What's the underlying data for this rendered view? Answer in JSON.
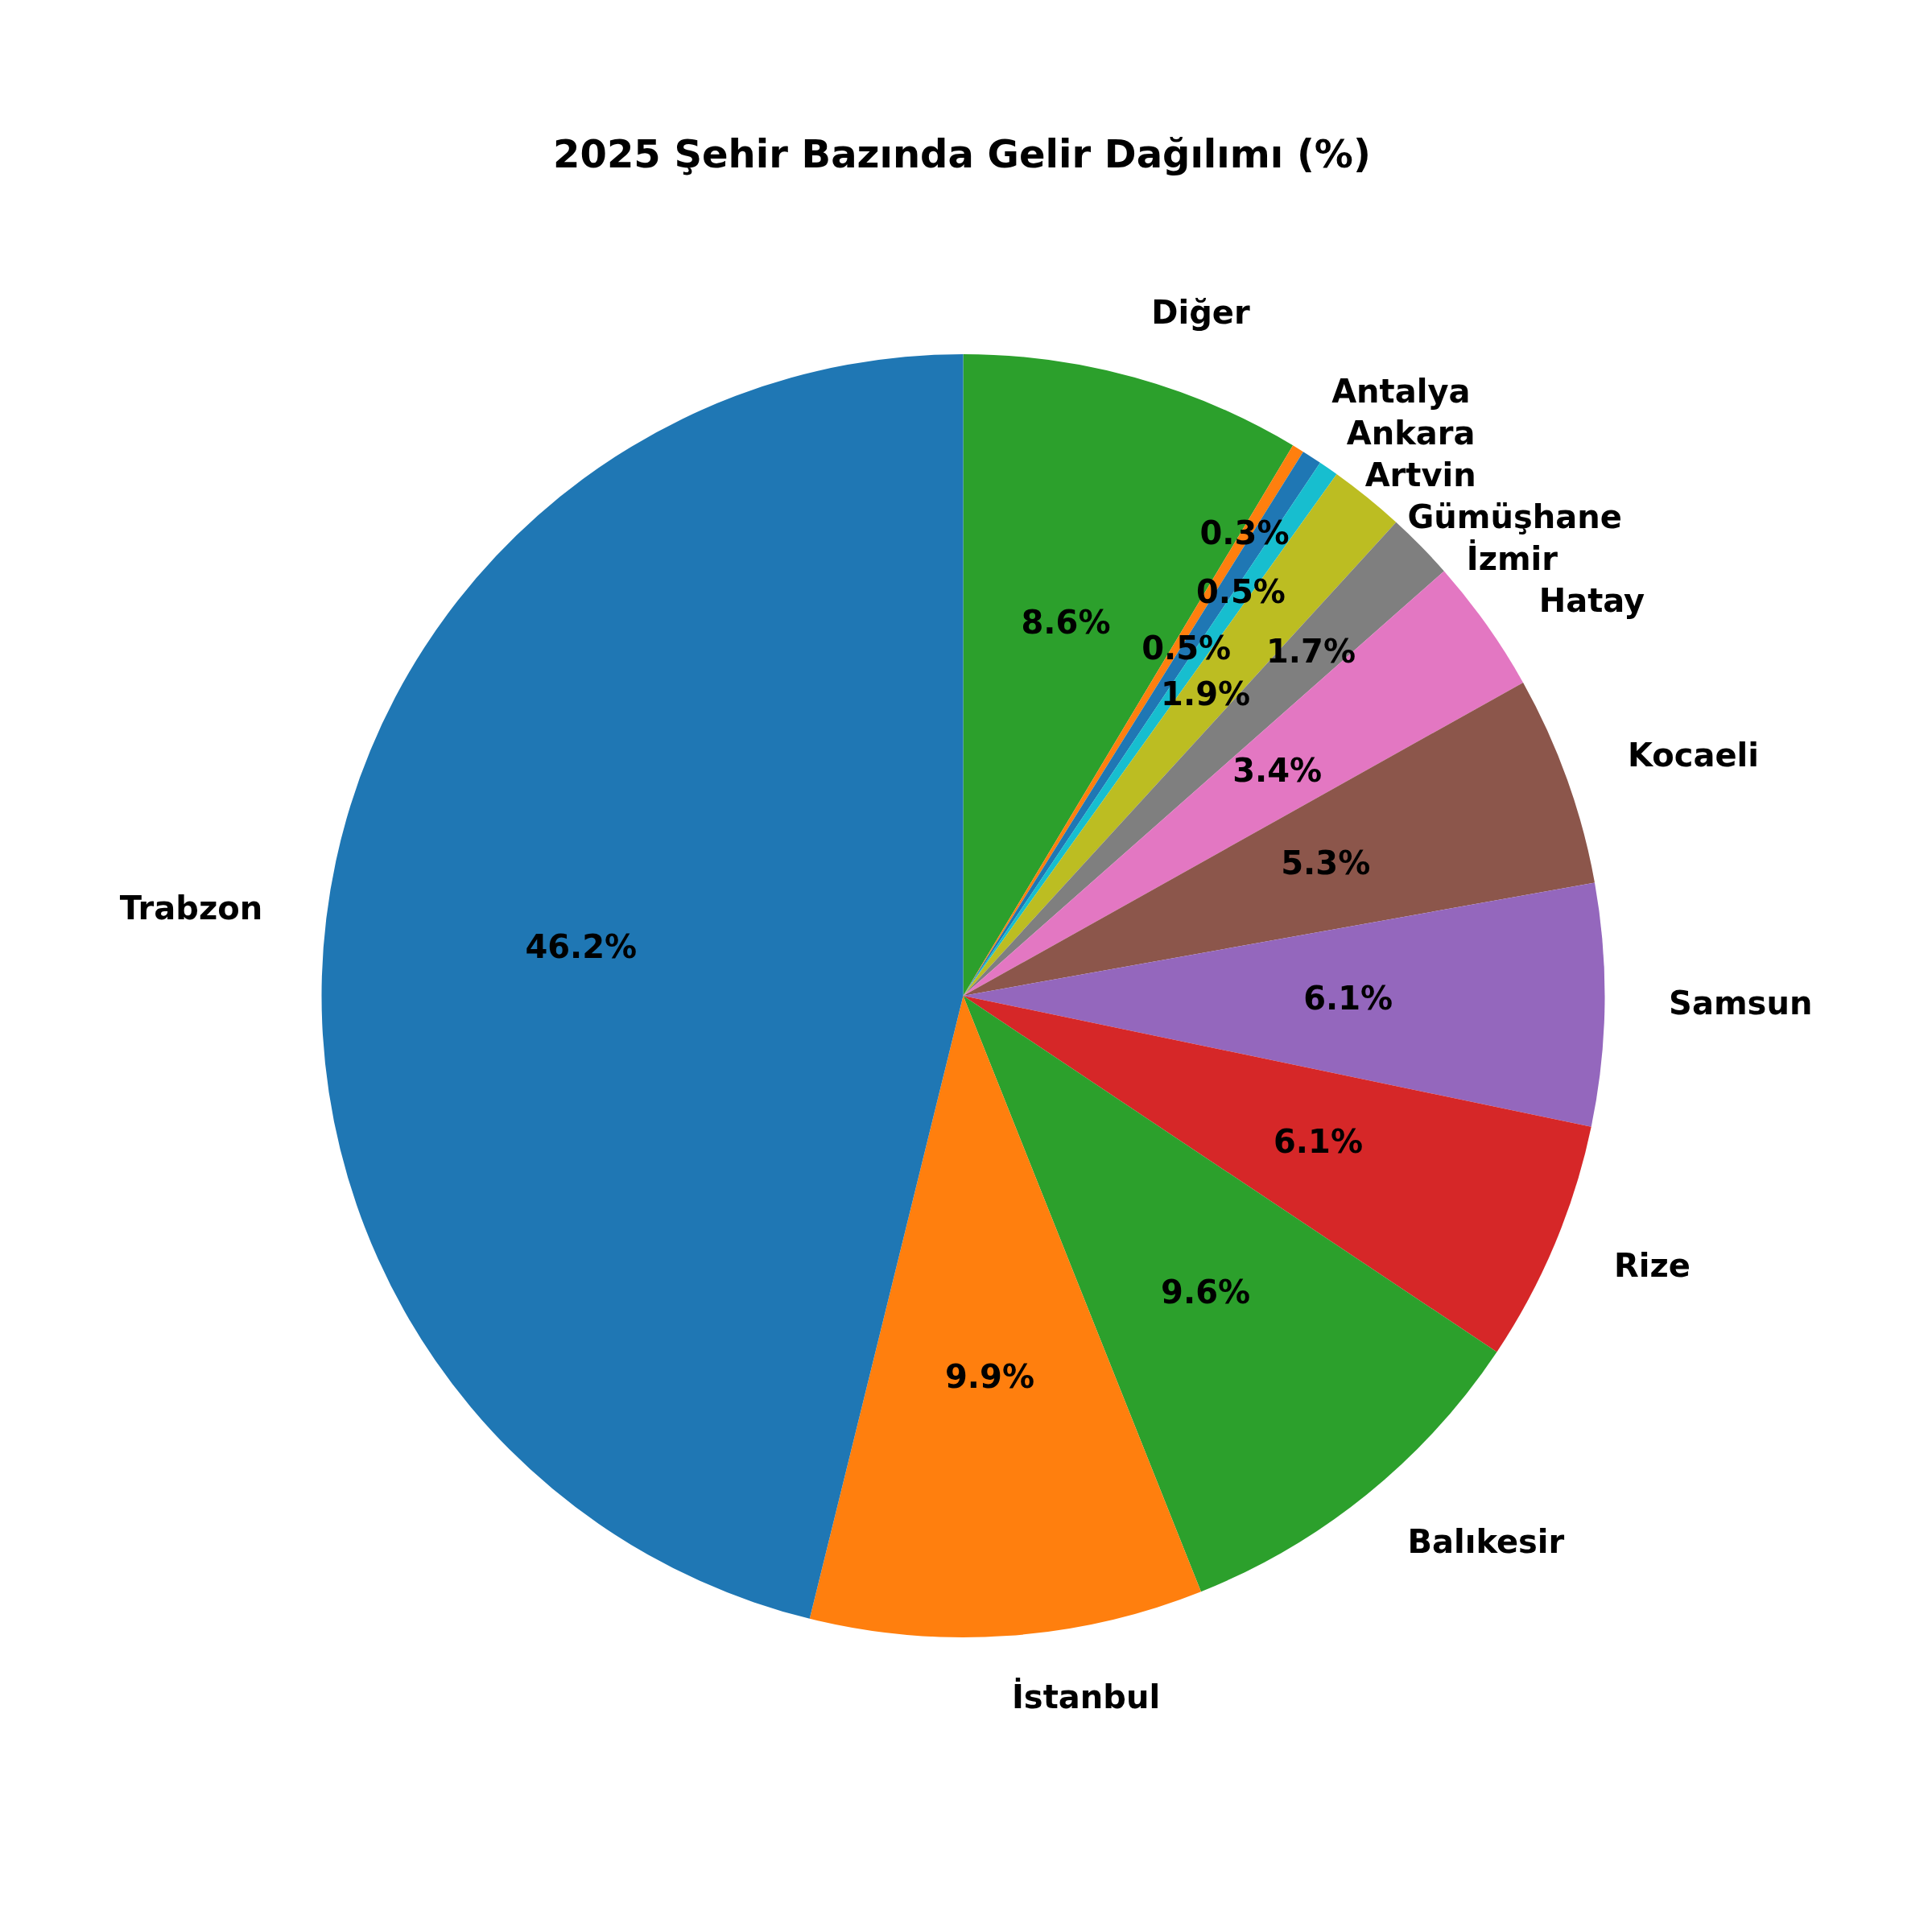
{
  "chart_data": {
    "type": "pie",
    "title": "2025 Şehir Bazında Gelir Dağılımı (%)",
    "categories": [
      "Diğer",
      "Antalya",
      "Ankara",
      "Artvin",
      "Gümüşhane",
      "İzmir",
      "Hatay",
      "Kocaeli",
      "Samsun",
      "Rize",
      "Balıkesir",
      "İstanbul",
      "Trabzon"
    ],
    "values": [
      8.6,
      0.3,
      0.5,
      0.5,
      1.9,
      1.7,
      3.4,
      5.3,
      6.1,
      6.1,
      9.6,
      9.9,
      46.2
    ],
    "value_labels": [
      "8.6%",
      "0.3%",
      "0.5%",
      "0.5%",
      "1.9%",
      "1.7%",
      "3.4%",
      "5.3%",
      "6.1%",
      "6.1%",
      "9.6%",
      "9.9%",
      "46.2%"
    ],
    "colors": [
      "#2ca02c",
      "#ff7f0e",
      "#1f77b4",
      "#17becf",
      "#bcbd22",
      "#7f7f7f",
      "#e377c2",
      "#8c564b",
      "#9467bd",
      "#d62728",
      "#2ca02c",
      "#ff7f0e",
      "#1f77b4"
    ],
    "legend": false
  }
}
